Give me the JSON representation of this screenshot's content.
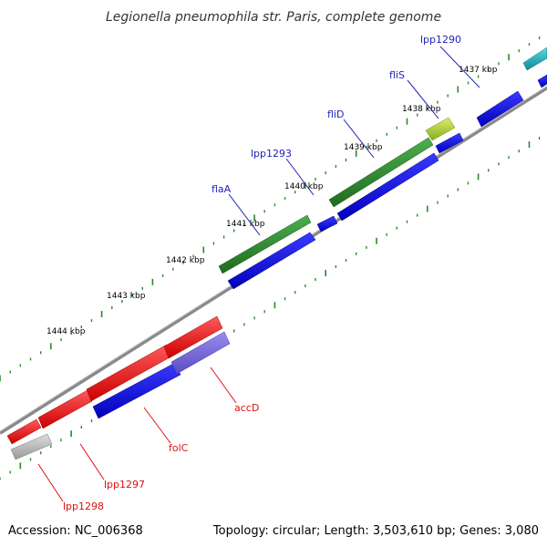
{
  "title": "Legionella pneumophila str. Paris, complete genome",
  "footer": {
    "accession": "Accession: NC_006368",
    "topology": "Topology: circular; Length: 3,503,610 bp; Genes: 3,080"
  },
  "colors": {
    "backbone": "#8a8a8a",
    "tick": "#2a8a2a",
    "gene_label_blue": "#2222bb",
    "gene_label_red": "#dd1111",
    "green_gene": "#2f8a2f",
    "red_gene": "#ee1111",
    "blue_gene": "#1111ee",
    "lavender_gene": "#7766dd",
    "gray_gene": "#bbbbbb"
  },
  "kbp_labels": [
    "1437 kbp",
    "1438 kbp",
    "1439 kbp",
    "1440 kbp",
    "1441 kbp",
    "1442 kbp",
    "1443 kbp",
    "1444 kbp"
  ],
  "gene_labels": [
    {
      "name": "lpp1290",
      "color": "blue"
    },
    {
      "name": "fliS",
      "color": "blue"
    },
    {
      "name": "fliD",
      "color": "blue"
    },
    {
      "name": "lpp1293",
      "color": "blue"
    },
    {
      "name": "flaA",
      "color": "blue"
    },
    {
      "name": "accD",
      "color": "red"
    },
    {
      "name": "folC",
      "color": "red"
    },
    {
      "name": "lpp1297",
      "color": "red"
    },
    {
      "name": "lpp1298",
      "color": "red"
    }
  ]
}
